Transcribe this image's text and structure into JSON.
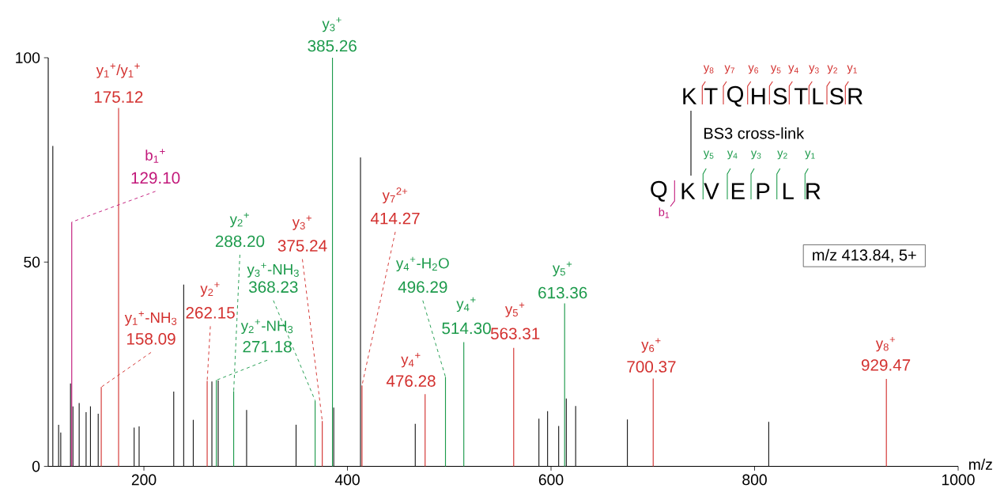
{
  "chart_data": {
    "type": "bar",
    "xlabel": "m/z",
    "xlim": [
      106,
      1000
    ],
    "xticks": [
      200,
      400,
      600,
      800,
      1000
    ],
    "ylim": [
      0,
      100
    ],
    "yticks": [
      0,
      50,
      100
    ],
    "series": [
      {
        "color": "#1a1a1a",
        "x": [
          110.5,
          116.2,
          118.3,
          127.9,
          130.3,
          136.4,
          143.2,
          147.5,
          155.1,
          190.4,
          195.3,
          229.3,
          239.1,
          248.5,
          266.8,
          273.0,
          300.9,
          349.5,
          386.5,
          412.8,
          466.6,
          588.1,
          596.6,
          607.5,
          615.0,
          624.2,
          675.0,
          813.9
        ],
        "values": [
          78.4,
          10.2,
          8.3,
          20.3,
          14.7,
          15.5,
          13.3,
          14.7,
          12.9,
          9.5,
          9.8,
          18.3,
          44.5,
          11.4,
          20.8,
          21.0,
          13.8,
          10.2,
          14.4,
          75.6,
          10.4,
          11.7,
          13.5,
          9.9,
          16.6,
          14.8,
          11.5,
          10.9
        ]
      },
      {
        "color": "#d3312f",
        "x": [
          158.09,
          175.12,
          262.15,
          375.24,
          414.27,
          476.28,
          563.31,
          700.37,
          929.47
        ],
        "values": [
          19.4,
          87.7,
          20.9,
          11.1,
          19.8,
          17.7,
          29.0,
          21.5,
          21.4
        ]
      },
      {
        "color": "#1c9a4b",
        "x": [
          271.18,
          288.2,
          368.23,
          385.26,
          496.29,
          514.3,
          613.36
        ],
        "values": [
          21.1,
          18.4,
          16.1,
          100,
          21.9,
          30.4,
          39.9
        ]
      },
      {
        "color": "#c2187a",
        "x": [
          129.1
        ],
        "values": [
          59.8
        ]
      }
    ],
    "annotations": [
      "y$_{1}$$^{+}$/y$_{1}$$^{+}$",
      {
        "text": "175.12",
        "x": 175.12,
        "y": 87.7
      },
      "b$_{1}$$^{+}$",
      {
        "text": "129.10",
        "x": 129.1,
        "y": 59.8
      },
      "y$_{1}$$^{+}$-NH$_{3}$",
      {
        "text": "158.09",
        "x": 158.09,
        "y": 19.4
      },
      "y$_{2}$$^{+}$",
      {
        "text": "262.15",
        "x": 262.15,
        "y": 20.9
      },
      "y$_{2}$$^{+}$",
      {
        "text": "288.20",
        "x": 288.2,
        "y": 18.4
      },
      "y$_{3}$$^{+}$-NH$_{3}$",
      {
        "text": "368.23",
        "x": 368.23,
        "y": 16.1
      },
      "y$_{2}$$^{+}$-NH$_{3}$",
      {
        "text": "271.18",
        "x": 271.18,
        "y": 21.1
      },
      "y$_{3}$$^{+}$",
      {
        "text": "375.24",
        "x": 375.24,
        "y": 11.1
      },
      "y$_{3}$$^{+}$",
      {
        "text": "385.26",
        "x": 385.26,
        "y": 100
      },
      "y$_{7}$$^{2+}$",
      {
        "text": "414.27",
        "x": 414.27,
        "y": 19.8
      },
      "y$_{4}$$^{+}$-H$_{2}$O",
      {
        "text": "496.29",
        "x": 496.29,
        "y": 21.9
      },
      "y$_{4}$$^{+}$",
      {
        "text": "476.28",
        "x": 476.28,
        "y": 17.7
      },
      "y$_{4}$$^{+}$",
      {
        "text": "514.30",
        "x": 514.3,
        "y": 30.4
      },
      "y$_{5}$$^{+}$",
      {
        "text": "563.31",
        "x": 563.31,
        "y": 29.0
      },
      "y$_{5}$$^{+}$",
      {
        "text": "613.36",
        "x": 613.36,
        "y": 39.9
      },
      "y$_{6}$$^{+}$",
      {
        "text": "700.37",
        "x": 700.37,
        "y": 21.5
      },
      "y$_{8}$$^{+}$",
      {
        "text": "929.47",
        "x": 929.47,
        "y": 21.4
      },
      "m/z 413.84, 5+",
      "BS3 cross-link",
      "K",
      "T",
      "Q",
      "H",
      "S",
      "T",
      "L",
      "S",
      "R",
      "y$_{8}$",
      "y$_{7}$",
      "y$_{6}$",
      "y$_{5}$",
      "y$_{4}$",
      "y$_{3}$",
      "y$_{2}$",
      "y$_{1}$",
      "Q",
      "K",
      "V",
      "E",
      "P",
      "L",
      "R",
      "y$_{5}$",
      "y$_{4}$",
      "y$_{3}$",
      "y$_{2}$",
      "y$_{1}$",
      "b$_{1}$"
    ]
  }
}
